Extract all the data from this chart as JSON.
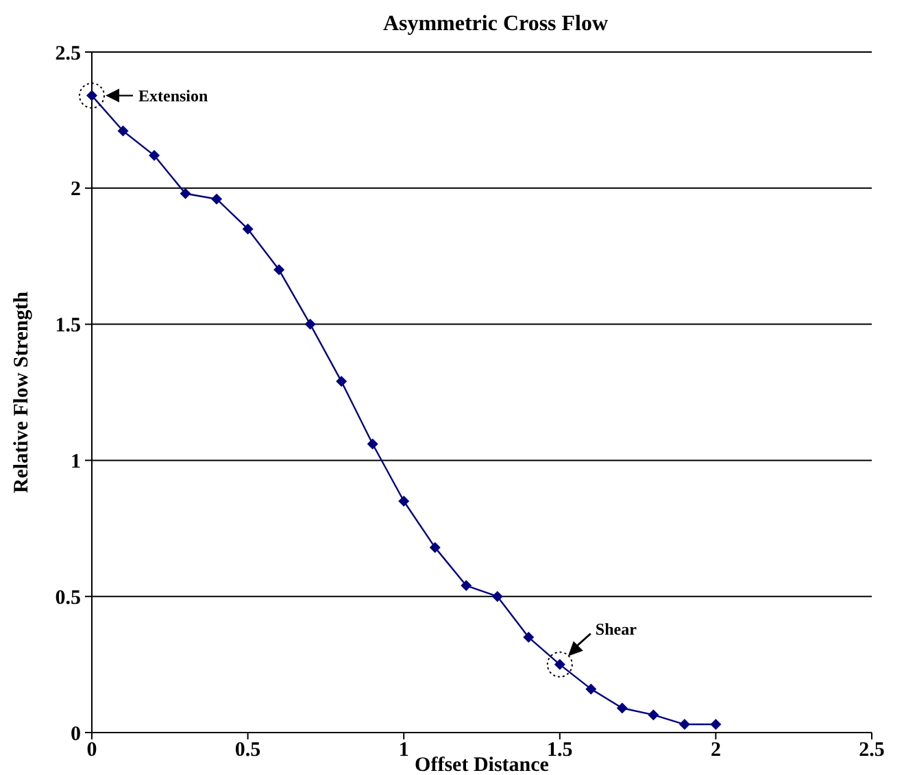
{
  "chart_data": {
    "type": "line",
    "title": "Asymmetric Cross Flow",
    "xlabel": "Offset Distance",
    "ylabel": "Relative Flow Strength",
    "x": [
      0,
      0.1,
      0.2,
      0.3,
      0.4,
      0.5,
      0.6,
      0.7,
      0.8,
      0.9,
      1,
      1.1,
      1.2,
      1.3,
      1.4,
      1.5,
      1.6,
      1.7,
      1.8,
      1.9,
      2
    ],
    "series": [
      {
        "color": "#000080",
        "values": [
          2.34,
          2.21,
          2.12,
          1.98,
          1.96,
          1.85,
          1.7,
          1.5,
          1.29,
          1.06,
          0.85,
          0.68,
          0.54,
          0.5,
          0.35,
          0.25,
          0.16,
          0.09,
          0.065,
          0.03,
          0.03
        ]
      }
    ],
    "xlim": [
      0,
      2.5
    ],
    "xticks": [
      0,
      0.5,
      1,
      1.5,
      2,
      2.5
    ],
    "ylim": [
      0,
      2.5
    ],
    "yticks": [
      0,
      0.5,
      1,
      1.5,
      2,
      2.5
    ],
    "grid": "y",
    "marker": "diamond",
    "line_style": "solid",
    "annotations": [
      {
        "text": "Extension",
        "x": 0,
        "y": 2.34
      },
      {
        "text": "Shear",
        "x": 1.5,
        "y": 0.25
      }
    ]
  }
}
